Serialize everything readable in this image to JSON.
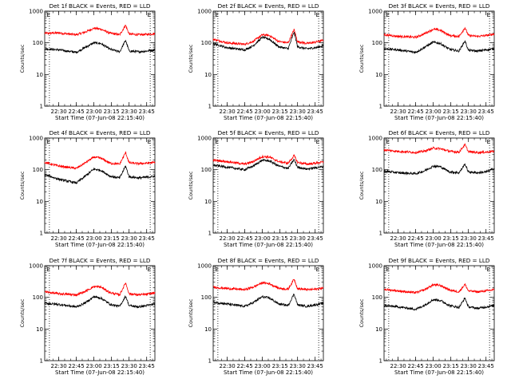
{
  "window": {
    "title": ""
  },
  "chart_data": [
    {
      "type": "line",
      "title": "Det 1f BLACK = Events, RED = LLD",
      "xlabel": "Start Time (07-Jun-08 22:15:40)",
      "ylabel": "Counts/sec",
      "yscale": "log",
      "ylim": [
        1,
        1000
      ],
      "xlim": [
        "22:18",
        "23:52"
      ],
      "x_ticks": [
        "22:30",
        "22:45",
        "23:00",
        "23:15",
        "23:30",
        "23:45"
      ],
      "y_ticks": [
        "1",
        "10",
        "100",
        "1000"
      ],
      "markers": {
        "x": [
          "22:22",
          "23:48"
        ],
        "label": "E"
      },
      "series": [
        {
          "name": "LLD",
          "color": "#ff0000",
          "x": [
            "22:18",
            "22:30",
            "22:45",
            "22:52",
            "23:00",
            "23:06",
            "23:14",
            "23:22",
            "23:27",
            "23:30",
            "23:38",
            "23:45",
            "23:52"
          ],
          "values": [
            200,
            205,
            180,
            215,
            290,
            270,
            200,
            180,
            360,
            190,
            180,
            185,
            195
          ]
        },
        {
          "name": "Events",
          "color": "#000000",
          "x": [
            "22:18",
            "22:30",
            "22:45",
            "22:52",
            "23:00",
            "23:06",
            "23:14",
            "23:22",
            "23:27",
            "23:30",
            "23:38",
            "23:45",
            "23:52"
          ],
          "values": [
            65,
            60,
            50,
            70,
            100,
            95,
            62,
            52,
            120,
            55,
            52,
            55,
            60
          ]
        }
      ]
    },
    {
      "type": "line",
      "title": "Det 2f BLACK = Events, RED = LLD",
      "xlabel": "Start Time (07-Jun-08 22:15:40)",
      "ylabel": "Counts/sec",
      "yscale": "log",
      "ylim": [
        1,
        1000
      ],
      "xlim": [
        "22:18",
        "23:52"
      ],
      "x_ticks": [
        "22:30",
        "22:45",
        "23:00",
        "23:15",
        "23:30",
        "23:45"
      ],
      "y_ticks": [
        "1",
        "10",
        "100",
        "1000"
      ],
      "markers": {
        "x": [
          "22:22",
          "23:48"
        ],
        "label": "E"
      },
      "series": [
        {
          "name": "LLD",
          "color": "#ff0000",
          "x": [
            "22:18",
            "22:30",
            "22:45",
            "22:52",
            "23:00",
            "23:06",
            "23:14",
            "23:22",
            "23:27",
            "23:30",
            "23:38",
            "23:45",
            "23:52"
          ],
          "values": [
            130,
            100,
            90,
            110,
            180,
            170,
            110,
            100,
            260,
            110,
            95,
            105,
            120
          ]
        },
        {
          "name": "Events",
          "color": "#000000",
          "x": [
            "22:18",
            "22:30",
            "22:45",
            "22:52",
            "23:00",
            "23:06",
            "23:14",
            "23:22",
            "23:27",
            "23:30",
            "23:38",
            "23:45",
            "23:52"
          ],
          "values": [
            95,
            70,
            60,
            80,
            150,
            130,
            75,
            65,
            220,
            75,
            65,
            70,
            80
          ]
        }
      ]
    },
    {
      "type": "line",
      "title": "Det 3f BLACK = Events, RED = LLD",
      "xlabel": "Start Time (07-Jun-08 22:15:40)",
      "ylabel": "Counts/sec",
      "yscale": "log",
      "ylim": [
        1,
        1000
      ],
      "xlim": [
        "22:18",
        "23:52"
      ],
      "x_ticks": [
        "22:30",
        "22:45",
        "23:00",
        "23:15",
        "23:30",
        "23:45"
      ],
      "y_ticks": [
        "1",
        "10",
        "100",
        "1000"
      ],
      "markers": {
        "x": [
          "22:22",
          "23:48"
        ],
        "label": "E"
      },
      "series": [
        {
          "name": "LLD",
          "color": "#ff0000",
          "x": [
            "22:18",
            "22:30",
            "22:45",
            "22:52",
            "23:00",
            "23:06",
            "23:14",
            "23:22",
            "23:27",
            "23:30",
            "23:38",
            "23:45",
            "23:52"
          ],
          "values": [
            180,
            160,
            150,
            190,
            270,
            250,
            170,
            160,
            300,
            170,
            160,
            170,
            190
          ]
        },
        {
          "name": "Events",
          "color": "#000000",
          "x": [
            "22:18",
            "22:30",
            "22:45",
            "22:52",
            "23:00",
            "23:06",
            "23:14",
            "23:22",
            "23:27",
            "23:30",
            "23:38",
            "23:45",
            "23:52"
          ],
          "values": [
            65,
            60,
            50,
            70,
            105,
            95,
            62,
            55,
            115,
            58,
            55,
            60,
            65
          ]
        }
      ]
    },
    {
      "type": "line",
      "title": "Det 4f BLACK = Events, RED = LLD",
      "xlabel": "Start Time (07-Jun-08 22:15:40)",
      "ylabel": "Counts/sec",
      "yscale": "log",
      "ylim": [
        1,
        1000
      ],
      "xlim": [
        "22:18",
        "23:52"
      ],
      "x_ticks": [
        "22:30",
        "22:45",
        "23:00",
        "23:15",
        "23:30",
        "23:45"
      ],
      "y_ticks": [
        "1",
        "10",
        "100",
        "1000"
      ],
      "markers": {
        "x": [
          "22:22",
          "23:48"
        ],
        "label": "E"
      },
      "series": [
        {
          "name": "LLD",
          "color": "#ff0000",
          "x": [
            "22:18",
            "22:30",
            "22:45",
            "22:52",
            "23:00",
            "23:06",
            "23:14",
            "23:22",
            "23:27",
            "23:30",
            "23:38",
            "23:45",
            "23:52"
          ],
          "values": [
            170,
            130,
            110,
            160,
            250,
            230,
            160,
            150,
            350,
            165,
            155,
            160,
            170
          ]
        },
        {
          "name": "Events",
          "color": "#000000",
          "x": [
            "22:18",
            "22:30",
            "22:45",
            "22:52",
            "23:00",
            "23:06",
            "23:14",
            "23:22",
            "23:27",
            "23:30",
            "23:38",
            "23:45",
            "23:52"
          ],
          "values": [
            70,
            50,
            38,
            60,
            105,
            95,
            62,
            55,
            130,
            60,
            55,
            58,
            62
          ]
        }
      ]
    },
    {
      "type": "line",
      "title": "Det 5f BLACK = Events, RED = LLD",
      "xlabel": "Start Time (07-Jun-08 22:15:40)",
      "ylabel": "Counts/sec",
      "yscale": "log",
      "ylim": [
        1,
        1000
      ],
      "xlim": [
        "22:18",
        "23:52"
      ],
      "x_ticks": [
        "22:30",
        "22:45",
        "23:00",
        "23:15",
        "23:30",
        "23:45"
      ],
      "y_ticks": [
        "1",
        "10",
        "100",
        "1000"
      ],
      "markers": {
        "x": [
          "22:22",
          "23:48"
        ],
        "label": "E"
      },
      "series": [
        {
          "name": "LLD",
          "color": "#ff0000",
          "x": [
            "22:18",
            "22:30",
            "22:45",
            "22:52",
            "23:00",
            "23:06",
            "23:14",
            "23:22",
            "23:27",
            "23:30",
            "23:38",
            "23:45",
            "23:52"
          ],
          "values": [
            200,
            180,
            150,
            180,
            260,
            250,
            180,
            160,
            280,
            170,
            150,
            160,
            175
          ]
        },
        {
          "name": "Events",
          "color": "#000000",
          "x": [
            "22:18",
            "22:30",
            "22:45",
            "22:52",
            "23:00",
            "23:06",
            "23:14",
            "23:22",
            "23:27",
            "23:30",
            "23:38",
            "23:45",
            "23:52"
          ],
          "values": [
            140,
            120,
            100,
            130,
            200,
            190,
            130,
            110,
            210,
            120,
            105,
            115,
            125
          ]
        }
      ]
    },
    {
      "type": "line",
      "title": "Det 6f BLACK = Events, RED = LLD",
      "xlabel": "Start Time (07-Jun-08 22:15:40)",
      "ylabel": "Counts/sec",
      "yscale": "log",
      "ylim": [
        1,
        1000
      ],
      "xlim": [
        "22:18",
        "23:52"
      ],
      "x_ticks": [
        "22:30",
        "22:45",
        "23:00",
        "23:15",
        "23:30",
        "23:45"
      ],
      "y_ticks": [
        "1",
        "10",
        "100",
        "1000"
      ],
      "markers": {
        "x": [
          "22:22",
          "23:48"
        ],
        "label": "E"
      },
      "series": [
        {
          "name": "LLD",
          "color": "#ff0000",
          "x": [
            "22:18",
            "22:30",
            "22:45",
            "22:52",
            "23:00",
            "23:06",
            "23:14",
            "23:22",
            "23:27",
            "23:30",
            "23:38",
            "23:45",
            "23:52"
          ],
          "values": [
            420,
            380,
            350,
            380,
            480,
            460,
            380,
            360,
            620,
            370,
            350,
            360,
            380
          ]
        },
        {
          "name": "Events",
          "color": "#000000",
          "x": [
            "22:18",
            "22:30",
            "22:45",
            "22:52",
            "23:00",
            "23:06",
            "23:14",
            "23:22",
            "23:27",
            "23:30",
            "23:38",
            "23:45",
            "23:52"
          ],
          "values": [
            90,
            80,
            75,
            90,
            130,
            125,
            85,
            80,
            150,
            85,
            80,
            85,
            110
          ]
        }
      ]
    },
    {
      "type": "line",
      "title": "Det 7f BLACK = Events, RED = LLD",
      "xlabel": "Start Time (07-Jun-08 22:15:40)",
      "ylabel": "Counts/sec",
      "yscale": "log",
      "ylim": [
        1,
        1000
      ],
      "xlim": [
        "22:18",
        "23:52"
      ],
      "x_ticks": [
        "22:30",
        "22:45",
        "23:00",
        "23:15",
        "23:30",
        "23:45"
      ],
      "y_ticks": [
        "1",
        "10",
        "100",
        "1000"
      ],
      "markers": {
        "x": [
          "22:22",
          "23:48"
        ],
        "label": "E"
      },
      "series": [
        {
          "name": "LLD",
          "color": "#ff0000",
          "x": [
            "22:18",
            "22:30",
            "22:45",
            "22:52",
            "23:00",
            "23:06",
            "23:14",
            "23:22",
            "23:27",
            "23:30",
            "23:38",
            "23:45",
            "23:52"
          ],
          "values": [
            150,
            130,
            120,
            150,
            220,
            210,
            140,
            120,
            290,
            130,
            120,
            125,
            140
          ]
        },
        {
          "name": "Events",
          "color": "#000000",
          "x": [
            "22:18",
            "22:30",
            "22:45",
            "22:52",
            "23:00",
            "23:06",
            "23:14",
            "23:22",
            "23:27",
            "23:30",
            "23:38",
            "23:45",
            "23:52"
          ],
          "values": [
            65,
            60,
            50,
            65,
            105,
            95,
            60,
            52,
            110,
            55,
            50,
            55,
            62
          ]
        }
      ]
    },
    {
      "type": "line",
      "title": "Det 8f BLACK = Events, RED = LLD",
      "xlabel": "Start Time (07-Jun-08 22:15:40)",
      "ylabel": "Counts/sec",
      "yscale": "log",
      "ylim": [
        1,
        1000
      ],
      "xlim": [
        "22:18",
        "23:52"
      ],
      "x_ticks": [
        "22:30",
        "22:45",
        "23:00",
        "23:15",
        "23:30",
        "23:45"
      ],
      "y_ticks": [
        "1",
        "10",
        "100",
        "1000"
      ],
      "markers": {
        "x": [
          "22:22",
          "23:48"
        ],
        "label": "E"
      },
      "series": [
        {
          "name": "LLD",
          "color": "#ff0000",
          "x": [
            "22:18",
            "22:30",
            "22:45",
            "22:52",
            "23:00",
            "23:06",
            "23:14",
            "23:22",
            "23:27",
            "23:30",
            "23:38",
            "23:45",
            "23:52"
          ],
          "values": [
            210,
            190,
            175,
            210,
            290,
            270,
            195,
            180,
            380,
            190,
            175,
            180,
            200
          ]
        },
        {
          "name": "Events",
          "color": "#000000",
          "x": [
            "22:18",
            "22:30",
            "22:45",
            "22:52",
            "23:00",
            "23:06",
            "23:14",
            "23:22",
            "23:27",
            "23:30",
            "23:38",
            "23:45",
            "23:52"
          ],
          "values": [
            70,
            62,
            52,
            68,
            105,
            95,
            62,
            55,
            130,
            58,
            52,
            58,
            65
          ]
        }
      ]
    },
    {
      "type": "line",
      "title": "Det 9f BLACK = Events, RED = LLD",
      "xlabel": "Start Time (07-Jun-08 22:15:40)",
      "ylabel": "Counts/sec",
      "yscale": "log",
      "ylim": [
        1,
        1000
      ],
      "xlim": [
        "22:18",
        "23:52"
      ],
      "x_ticks": [
        "22:30",
        "22:45",
        "23:00",
        "23:15",
        "23:30",
        "23:45"
      ],
      "y_ticks": [
        "1",
        "10",
        "100",
        "1000"
      ],
      "markers": {
        "x": [
          "22:22",
          "23:48"
        ],
        "label": "E"
      },
      "series": [
        {
          "name": "LLD",
          "color": "#ff0000",
          "x": [
            "22:18",
            "22:30",
            "22:45",
            "22:52",
            "23:00",
            "23:06",
            "23:14",
            "23:22",
            "23:27",
            "23:30",
            "23:38",
            "23:45",
            "23:52"
          ],
          "values": [
            180,
            160,
            140,
            170,
            250,
            240,
            170,
            150,
            260,
            160,
            150,
            160,
            175
          ]
        },
        {
          "name": "Events",
          "color": "#000000",
          "x": [
            "22:18",
            "22:30",
            "22:45",
            "22:52",
            "23:00",
            "23:06",
            "23:14",
            "23:22",
            "23:27",
            "23:30",
            "23:38",
            "23:45",
            "23:52"
          ],
          "values": [
            55,
            50,
            42,
            55,
            85,
            80,
            55,
            48,
            95,
            50,
            45,
            50,
            55
          ]
        }
      ]
    }
  ]
}
